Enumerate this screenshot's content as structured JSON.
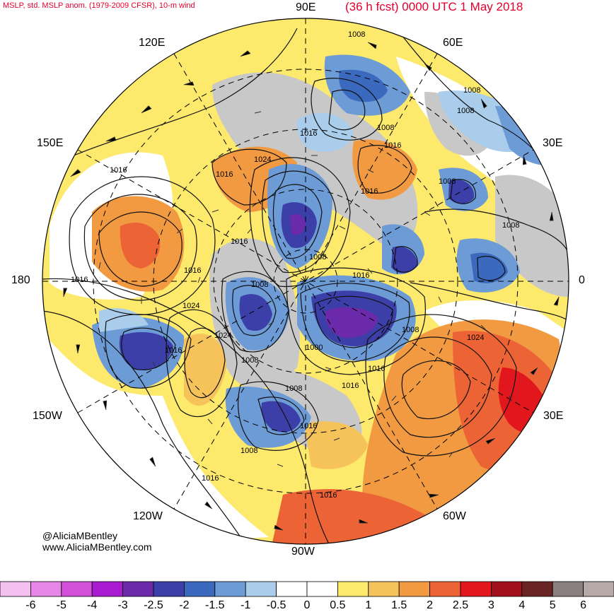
{
  "title_left": "MSLP, std. MSLP anom. (1979-2009 CFSR), 10-m wind",
  "title_right": "(36 h fcst) 0000 UTC 1 May 2018",
  "longitude_labels": [
    "90E",
    "60E",
    "30E",
    "0",
    "60W",
    "90W",
    "120W",
    "150W",
    "180",
    "150E",
    "120E"
  ],
  "credit": {
    "handle": "@AliciaMBentley",
    "site": "www.AliciaMBentley.com"
  },
  "isobars": [
    "1008",
    "1008",
    "1008",
    "1016",
    "1024",
    "1016",
    "1016",
    "1008",
    "1016",
    "1008",
    "1016",
    "1016",
    "1016",
    "1016",
    "1024",
    "1008",
    "1016",
    "1000",
    "1008",
    "1008",
    "1024",
    "1024",
    "1016",
    "1016",
    "1008",
    "1016",
    "1008",
    "1016",
    "1016",
    "1016",
    "1008",
    "1008"
  ],
  "colorbar": {
    "ticks": [
      "-6",
      "-5",
      "-4",
      "-3",
      "-2.5",
      "-2",
      "-1.5",
      "-1",
      "-0.5",
      "0",
      "0.5",
      "1",
      "1.5",
      "2",
      "2.5",
      "3",
      "4",
      "5",
      "6"
    ],
    "colors": [
      "#f4c0f0",
      "#e787e7",
      "#d34fd8",
      "#a81bd0",
      "#6b2aaa",
      "#3d3fa8",
      "#3a69be",
      "#6d9bd6",
      "#a9cdea",
      "#ffffff",
      "#ffffff",
      "#fde96b",
      "#f6c35a",
      "#f19a42",
      "#ec6435",
      "#e2171d",
      "#a2101c",
      "#6a2424",
      "#8c7f7f",
      "#b8a9a9"
    ]
  },
  "colors": {
    "title": "#e4002b",
    "land_gray": "#c8c8c8"
  }
}
